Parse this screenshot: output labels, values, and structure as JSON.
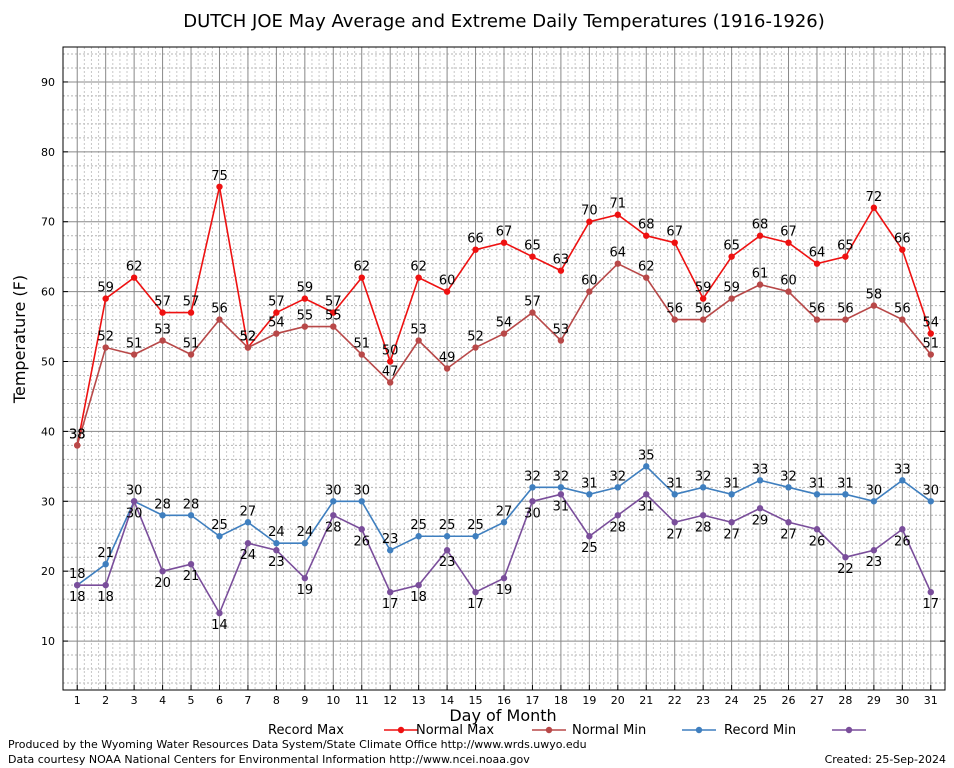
{
  "chart_data": {
    "type": "line",
    "title": "DUTCH JOE May Average and Extreme Daily Temperatures (1916-1926)",
    "xlabel": "Day of Month",
    "ylabel": "Temperature (F)",
    "x": [
      1,
      2,
      3,
      4,
      5,
      6,
      7,
      8,
      9,
      10,
      11,
      12,
      13,
      14,
      15,
      16,
      17,
      18,
      19,
      20,
      21,
      22,
      23,
      24,
      25,
      26,
      27,
      28,
      29,
      30,
      31
    ],
    "xlim": [
      0.5,
      31.5
    ],
    "ylim": [
      3,
      95
    ],
    "yticks": [
      10,
      20,
      30,
      40,
      50,
      60,
      70,
      80,
      90
    ],
    "grid": true,
    "legend_position": "bottom",
    "series": [
      {
        "name": "Record Max",
        "color": "#ee1111",
        "values": [
          38,
          59,
          62,
          57,
          57,
          75,
          52,
          57,
          59,
          57,
          62,
          50,
          62,
          60,
          66,
          67,
          65,
          63,
          70,
          71,
          68,
          67,
          59,
          65,
          68,
          67,
          64,
          65,
          72,
          66,
          54
        ]
      },
      {
        "name": "Normal Max",
        "color": "#b84848",
        "values": [
          38,
          52,
          51,
          53,
          51,
          56,
          52,
          54,
          55,
          55,
          51,
          47,
          53,
          49,
          52,
          54,
          57,
          53,
          60,
          64,
          62,
          56,
          56,
          59,
          61,
          60,
          56,
          56,
          58,
          56,
          51
        ]
      },
      {
        "name": "Normal Min",
        "color": "#3f7fbf",
        "values": [
          18,
          21,
          30,
          28,
          28,
          25,
          27,
          24,
          24,
          30,
          30,
          23,
          25,
          25,
          25,
          27,
          32,
          32,
          31,
          32,
          35,
          31,
          32,
          31,
          33,
          32,
          31,
          31,
          30,
          33,
          30
        ]
      },
      {
        "name": "Record Min",
        "color": "#7a4e9b",
        "values": [
          18,
          18,
          30,
          20,
          21,
          14,
          24,
          23,
          19,
          28,
          26,
          17,
          18,
          23,
          17,
          19,
          30,
          31,
          25,
          28,
          31,
          27,
          28,
          27,
          29,
          27,
          26,
          22,
          23,
          26,
          17
        ]
      }
    ]
  },
  "footer": {
    "line1": "Produced by the Wyoming Water Resources Data System/State Climate Office http://www.wrds.uwyo.edu",
    "line2": "Data courtesy NOAA National Centers for Environmental Information http://www.ncei.noaa.gov",
    "created": "Created:  25-Sep-2024"
  }
}
